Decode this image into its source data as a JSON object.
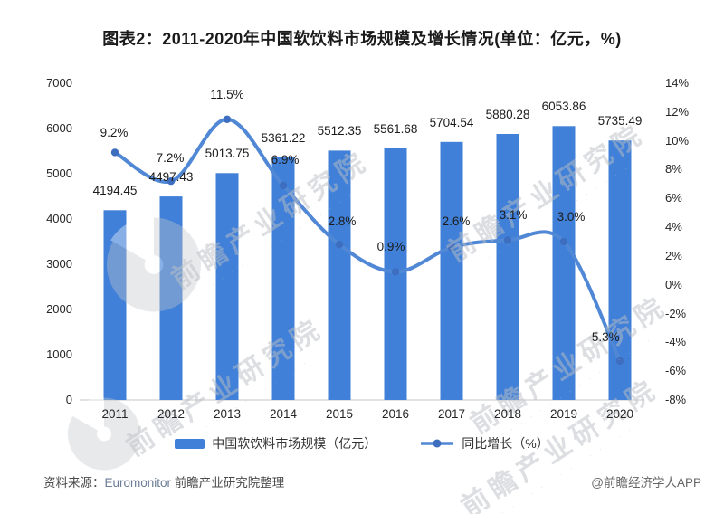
{
  "title": "图表2：2011-2020年中国软饮料市场规模及增长情况(单位：亿元，%)",
  "chart_data": {
    "type": "bar+line combo",
    "categories": [
      "2011",
      "2012",
      "2013",
      "2014",
      "2015",
      "2016",
      "2017",
      "2018",
      "2019",
      "2020"
    ],
    "series": [
      {
        "name": "中国软饮料市场规模（亿元）",
        "chart_type": "bar",
        "axis": "left",
        "color": "#4180d8",
        "values": [
          4194.45,
          4497.43,
          5013.75,
          5361.22,
          5512.35,
          5561.68,
          5704.54,
          5880.28,
          6053.86,
          5735.49
        ],
        "labels": [
          "4194.45",
          "4497.43",
          "5013.75",
          "5361.22",
          "5512.35",
          "5561.68",
          "5704.54",
          "5880.28",
          "6053.86",
          "5735.49"
        ]
      },
      {
        "name": "同比增长（%）",
        "chart_type": "line",
        "axis": "right",
        "color": "#5088d6",
        "marker_color": "#3d6ec0",
        "values": [
          9.2,
          7.2,
          11.5,
          6.9,
          2.8,
          0.9,
          2.6,
          3.1,
          3.0,
          -5.3
        ],
        "labels": [
          "9.2%",
          "7.2%",
          "11.5%",
          "6.9%",
          "2.8%",
          "0.9%",
          "2.6%",
          "3.1%",
          "3.0%",
          "-5.3%"
        ]
      }
    ],
    "left_axis": {
      "min": 0,
      "max": 7000,
      "ticks": [
        "7000",
        "6000",
        "5000",
        "4000",
        "3000",
        "2000",
        "1000",
        "0"
      ]
    },
    "right_axis": {
      "min": -8,
      "max": 14,
      "ticks": [
        "14%",
        "12%",
        "10%",
        "8%",
        "6%",
        "4%",
        "2%",
        "0%",
        "-2%",
        "-4%",
        "-6%",
        "-8%"
      ]
    },
    "grid": false,
    "legend_position": "bottom",
    "axis_line_color": "#d9d9d9"
  },
  "footer": {
    "source_prefix": "资料来源：",
    "source_name": "Euromonitor",
    "source_suffix": " 前瞻产业研究院整理",
    "credit": "@前瞻经济学人APP"
  },
  "watermark": {
    "text": "前瞻产业研究院",
    "sub": "· · · · · · · · · · · · · · ·",
    "color": "#c3c7cc"
  }
}
